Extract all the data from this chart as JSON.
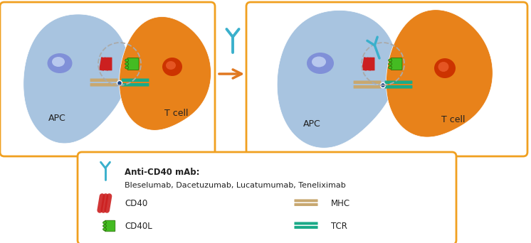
{
  "fig_width": 7.46,
  "fig_height": 3.42,
  "dpi": 100,
  "apc_color": "#a8c4e0",
  "apc_color2": "#b8d0ea",
  "apc_nucleus_color": "#6080c8",
  "apc_nucleus_color2": "#8090d8",
  "tcell_color": "#e8821a",
  "tcell_color2": "#f09030",
  "tcell_nucleus_color": "#cc3300",
  "cd40_color": "#cc2020",
  "cd40l_color": "#44bb22",
  "mhc_color": "#c8a870",
  "tcr_color": "#1aaa88",
  "antibody_color": "#3ab0cc",
  "connector_color": "#1a4488",
  "box_color": "#f0a020",
  "arrow_color": "#e07820",
  "dashed_circle_color": "#aaaaaa",
  "legend_text1": "Anti-CD40 mAb:",
  "legend_text2": "Bleselumab, Dacetuzumab, Lucatumumab, Teneliximab",
  "legend_cd40": "CD40",
  "legend_cd40l": "CD40L",
  "legend_mhc": "MHC",
  "legend_tcr": "TCR",
  "apc_label": "APC",
  "tcell_label": "T cell"
}
